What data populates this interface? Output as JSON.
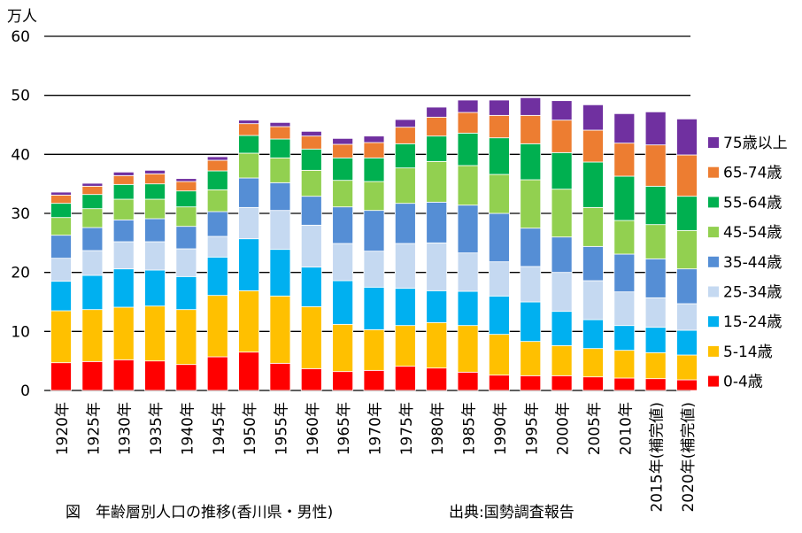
{
  "chart_data": {
    "type": "bar",
    "stacked": true,
    "ylabel": "万人",
    "ylim": [
      0,
      60
    ],
    "yticks": [
      0,
      10,
      20,
      30,
      40,
      50,
      60
    ],
    "grid": "horizontal",
    "legend_position": "right",
    "categories": [
      "1920年",
      "1925年",
      "1930年",
      "1935年",
      "1940年",
      "1945年",
      "1950年",
      "1955年",
      "1960年",
      "1965年",
      "1970年",
      "1975年",
      "1980年",
      "1985年",
      "1990年",
      "1995年",
      "2000年",
      "2005年",
      "2010年",
      "2015年(補完値)",
      "2020年(補完値)"
    ],
    "series": [
      {
        "name": "0-4歳",
        "color": "#ff0000",
        "values": [
          4.7,
          4.9,
          5.2,
          5.0,
          4.4,
          5.7,
          6.5,
          4.6,
          3.7,
          3.2,
          3.4,
          4.1,
          3.8,
          3.1,
          2.6,
          2.5,
          2.5,
          2.3,
          2.1,
          2.0,
          1.8
        ]
      },
      {
        "name": "5-14歳",
        "color": "#ffc000",
        "values": [
          8.8,
          8.8,
          8.9,
          9.3,
          9.3,
          10.4,
          10.4,
          11.4,
          10.5,
          8.0,
          6.9,
          6.9,
          7.7,
          7.9,
          6.9,
          5.8,
          5.1,
          4.8,
          4.7,
          4.4,
          4.2
        ]
      },
      {
        "name": "15-24歳",
        "color": "#00b0f0",
        "values": [
          5.0,
          5.8,
          6.5,
          6.1,
          5.6,
          6.5,
          8.8,
          7.9,
          6.7,
          7.4,
          7.2,
          6.3,
          5.4,
          5.8,
          6.5,
          6.7,
          5.8,
          4.9,
          4.2,
          4.3,
          4.2
        ]
      },
      {
        "name": "25-34歳",
        "color": "#c5d9f1",
        "values": [
          3.9,
          4.2,
          4.6,
          4.8,
          4.7,
          3.5,
          5.3,
          6.6,
          7.1,
          6.3,
          6.1,
          7.6,
          8.1,
          6.5,
          5.8,
          6.0,
          6.6,
          6.6,
          5.7,
          5.0,
          4.5
        ]
      },
      {
        "name": "35-44歳",
        "color": "#558ed5",
        "values": [
          3.9,
          3.9,
          3.7,
          3.9,
          3.8,
          4.2,
          5.0,
          4.7,
          4.9,
          6.2,
          6.9,
          6.8,
          6.9,
          8.1,
          8.2,
          6.5,
          6.0,
          5.8,
          6.4,
          6.6,
          5.9
        ]
      },
      {
        "name": "45-54歳",
        "color": "#92d050",
        "values": [
          3.0,
          3.2,
          3.5,
          3.3,
          3.3,
          3.7,
          4.2,
          4.2,
          4.4,
          4.5,
          4.9,
          6.0,
          6.9,
          6.7,
          6.6,
          8.2,
          8.1,
          6.6,
          5.7,
          5.8,
          6.5
        ]
      },
      {
        "name": "55-64歳",
        "color": "#00b050",
        "values": [
          2.4,
          2.4,
          2.5,
          2.6,
          2.7,
          3.2,
          3.0,
          3.2,
          3.6,
          3.8,
          4.0,
          4.1,
          4.3,
          5.5,
          6.2,
          6.1,
          6.2,
          7.7,
          7.5,
          6.5,
          5.8
        ]
      },
      {
        "name": "65-74歳",
        "color": "#ed7d31",
        "values": [
          1.4,
          1.4,
          1.5,
          1.7,
          1.6,
          1.8,
          2.0,
          2.1,
          2.2,
          2.3,
          2.6,
          2.8,
          3.2,
          3.5,
          3.8,
          4.8,
          5.5,
          5.4,
          5.6,
          7.0,
          7.0
        ]
      },
      {
        "name": "75歳以上",
        "color": "#7030a0",
        "values": [
          0.5,
          0.5,
          0.6,
          0.6,
          0.5,
          0.6,
          0.6,
          0.7,
          0.8,
          1.0,
          1.1,
          1.3,
          1.7,
          2.1,
          2.6,
          3.0,
          3.3,
          4.3,
          5.0,
          5.6,
          6.1
        ]
      }
    ]
  },
  "caption": {
    "title": "図　年齢層別人口の推移(香川県・男性)",
    "source": "出典:国勢調査報告"
  }
}
